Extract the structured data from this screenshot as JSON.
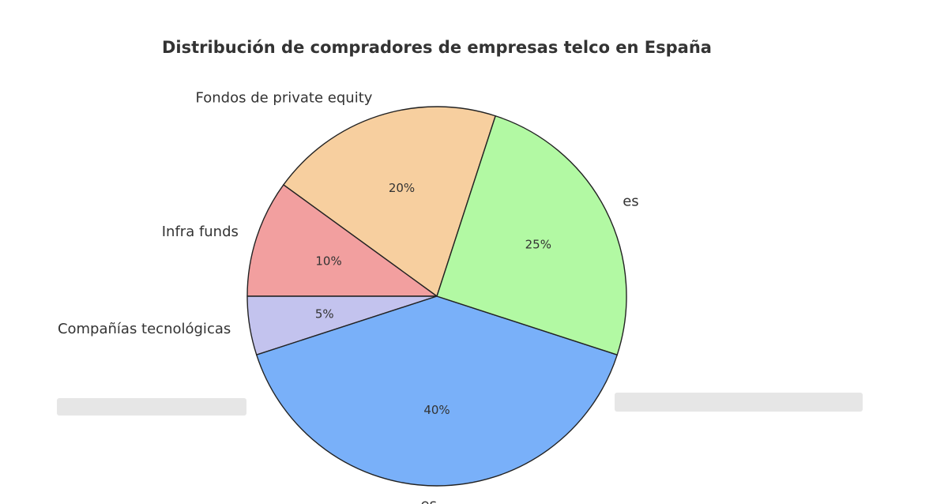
{
  "chart_data": {
    "type": "pie",
    "title": "Distribución de compradores de empresas telco en España",
    "slices": [
      {
        "label": "Fondos de private equity",
        "value": 20,
        "pct_label": "20%",
        "color": "#f7cf9f"
      },
      {
        "label": "Infra funds",
        "value": 10,
        "pct_label": "10%",
        "color": "#f29f9f"
      },
      {
        "label": "Compañías tecnológicas",
        "value": 5,
        "pct_label": "5%",
        "color": "#c3c3ee"
      },
      {
        "label": "es",
        "value": 40,
        "pct_label": "40%",
        "color": "#79b0f9"
      },
      {
        "label": "es",
        "value": 25,
        "pct_label": "25%",
        "color": "#b2f9a3"
      }
    ],
    "start_angle_deg": 72,
    "direction": "counterclockwise",
    "edge_color": "#222222"
  }
}
